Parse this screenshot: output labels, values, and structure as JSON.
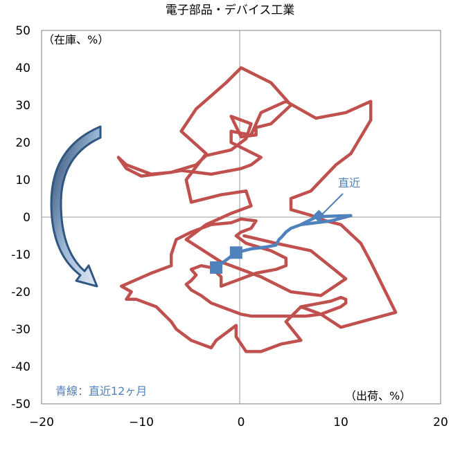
{
  "chart_data": {
    "type": "line",
    "title": "電子部品・デバイス工業",
    "xlabel": "（出荷、%）",
    "ylabel": "（在庫、%）",
    "xlim": [
      -20,
      20
    ],
    "ylim": [
      -50,
      50
    ],
    "x_ticks": [
      "−20",
      "−10",
      "0",
      "10",
      "20"
    ],
    "y_ticks": [
      "50",
      "40",
      "30",
      "20",
      "10",
      "0",
      "-10",
      "-20",
      "-30",
      "-40",
      "-50"
    ],
    "grid": false,
    "legend_text": "青線：直近12ヶ月",
    "annotation": "直近",
    "colors": {
      "history": "#c0504d",
      "recent": "#4f81bd",
      "arrow": "#2e5680"
    },
    "series": [
      {
        "values": [
          [
            0.3,
            -5
          ],
          [
            3.5,
            -7
          ],
          [
            7,
            -9
          ],
          [
            10.5,
            -16.5
          ],
          [
            8,
            -21
          ],
          [
            5,
            -20
          ],
          [
            2,
            -16
          ],
          [
            -2,
            -12
          ],
          [
            -5.5,
            -6
          ],
          [
            -3.5,
            -2
          ],
          [
            -1,
            1
          ],
          [
            1,
            3
          ],
          [
            0.5,
            7
          ],
          [
            -2,
            6
          ],
          [
            -5,
            4
          ],
          [
            -5.5,
            10
          ],
          [
            -3.5,
            17
          ],
          [
            -6,
            23
          ],
          [
            -4.5,
            29
          ],
          [
            -1.5,
            36
          ],
          [
            0,
            40
          ],
          [
            3,
            36
          ],
          [
            5,
            30
          ],
          [
            3,
            25
          ],
          [
            1.5,
            24
          ],
          [
            1.5,
            22
          ],
          [
            0,
            21.5
          ],
          [
            -1,
            27
          ],
          [
            1,
            25
          ],
          [
            0.5,
            21
          ],
          [
            -1,
            18
          ],
          [
            -3.5,
            16.5
          ],
          [
            -4.5,
            14
          ],
          [
            -7,
            12
          ],
          [
            -10,
            11
          ],
          [
            -11.5,
            13
          ],
          [
            -12.3,
            16
          ],
          [
            -11.5,
            14
          ],
          [
            -9,
            11.5
          ],
          [
            -7,
            12
          ],
          [
            -6,
            12.5
          ],
          [
            -3,
            11.5
          ],
          [
            0,
            13
          ],
          [
            1,
            14
          ],
          [
            2,
            16
          ],
          [
            -1,
            20
          ],
          [
            -1,
            23
          ],
          [
            1,
            22
          ],
          [
            2,
            28
          ],
          [
            4.5,
            31
          ],
          [
            7.5,
            26.5
          ],
          [
            10.5,
            28
          ],
          [
            13,
            31
          ],
          [
            13,
            26
          ],
          [
            11,
            17
          ],
          [
            9.5,
            14
          ],
          [
            7,
            7
          ],
          [
            5,
            5
          ],
          [
            5,
            2
          ],
          [
            7,
            0.5
          ],
          [
            8.5,
            -1
          ],
          [
            10,
            -2
          ],
          [
            12,
            -7
          ],
          [
            13,
            -12
          ],
          [
            15.5,
            -25.5
          ],
          [
            10,
            -29.5
          ],
          [
            8,
            -26
          ],
          [
            6,
            -24
          ],
          [
            4.5,
            -28
          ],
          [
            6,
            -33
          ],
          [
            4,
            -34
          ],
          [
            2,
            -36
          ],
          [
            0.5,
            -36
          ],
          [
            -0.5,
            -32
          ],
          [
            -0.5,
            -29
          ],
          [
            -1.5,
            -31
          ],
          [
            -2.5,
            -33
          ],
          [
            -3,
            -35
          ],
          [
            -5,
            -33
          ],
          [
            -6.5,
            -30
          ],
          [
            -7,
            -28
          ],
          [
            -8.5,
            -24
          ],
          [
            -10.5,
            -22
          ],
          [
            -11.5,
            -22
          ],
          [
            -11,
            -20
          ],
          [
            -12,
            -18.5
          ],
          [
            -9,
            -15
          ],
          [
            -7,
            -13
          ],
          [
            -7,
            -10
          ],
          [
            -6.5,
            -6
          ],
          [
            -5,
            -4
          ],
          [
            -3,
            -2
          ],
          [
            -1,
            -1.5
          ],
          [
            0,
            -0.5
          ],
          [
            1.5,
            -1
          ],
          [
            1,
            -3
          ],
          [
            0,
            -4
          ],
          [
            -0.5,
            -5
          ],
          [
            0.5,
            -7
          ],
          [
            3,
            -9
          ],
          [
            4.5,
            -11
          ],
          [
            4.5,
            -13
          ],
          [
            3.5,
            -14
          ],
          [
            2.5,
            -14.5
          ],
          [
            1.5,
            -15
          ],
          [
            0.5,
            -16
          ],
          [
            -0.5,
            -17
          ],
          [
            -1.5,
            -18
          ],
          [
            -2,
            -18.5
          ],
          [
            -2,
            -16
          ],
          [
            -3,
            -13.5
          ],
          [
            -4,
            -13
          ],
          [
            -5,
            -14
          ],
          [
            -4.5,
            -15.5
          ],
          [
            -5,
            -17
          ],
          [
            -5.5,
            -18
          ],
          [
            -5,
            -19.5
          ],
          [
            -4,
            -21
          ],
          [
            -3,
            -23
          ],
          [
            -2,
            -24
          ],
          [
            -1,
            -25
          ],
          [
            0,
            -26
          ],
          [
            1,
            -26.5
          ],
          [
            2,
            -26.5
          ],
          [
            3,
            -26.5
          ],
          [
            4,
            -26.5
          ],
          [
            5,
            -26.5
          ],
          [
            6.5,
            -26.5
          ],
          [
            8,
            -26
          ],
          [
            9,
            -25
          ],
          [
            10,
            -24
          ],
          [
            10.5,
            -23
          ],
          [
            10.5,
            -22
          ],
          [
            10,
            -21.5
          ],
          [
            9.5,
            -22
          ],
          [
            9,
            -22.5
          ],
          [
            8,
            -23
          ],
          [
            7,
            -23.5
          ],
          [
            6,
            -24
          ]
        ]
      },
      {
        "values": [
          [
            -2.5,
            -13.5
          ],
          [
            -0.5,
            -9.5
          ],
          [
            1,
            -8.5
          ],
          [
            2.5,
            -8
          ],
          [
            3.5,
            -7.5
          ],
          [
            3.8,
            -6
          ],
          [
            4,
            -5.5
          ],
          [
            4.5,
            -4
          ],
          [
            5,
            -3
          ],
          [
            6,
            -2
          ],
          [
            7.5,
            0
          ],
          [
            8.5,
            0.2
          ],
          [
            9.5,
            0.3
          ],
          [
            11,
            0.4
          ],
          [
            9,
            -1
          ],
          [
            7.5,
            -1.5
          ],
          [
            6,
            -2
          ]
        ]
      }
    ],
    "markers": [
      [
        -2.5,
        -13.5
      ],
      [
        -0.5,
        -9.5
      ],
      [
        7.8,
        0.3
      ]
    ]
  }
}
